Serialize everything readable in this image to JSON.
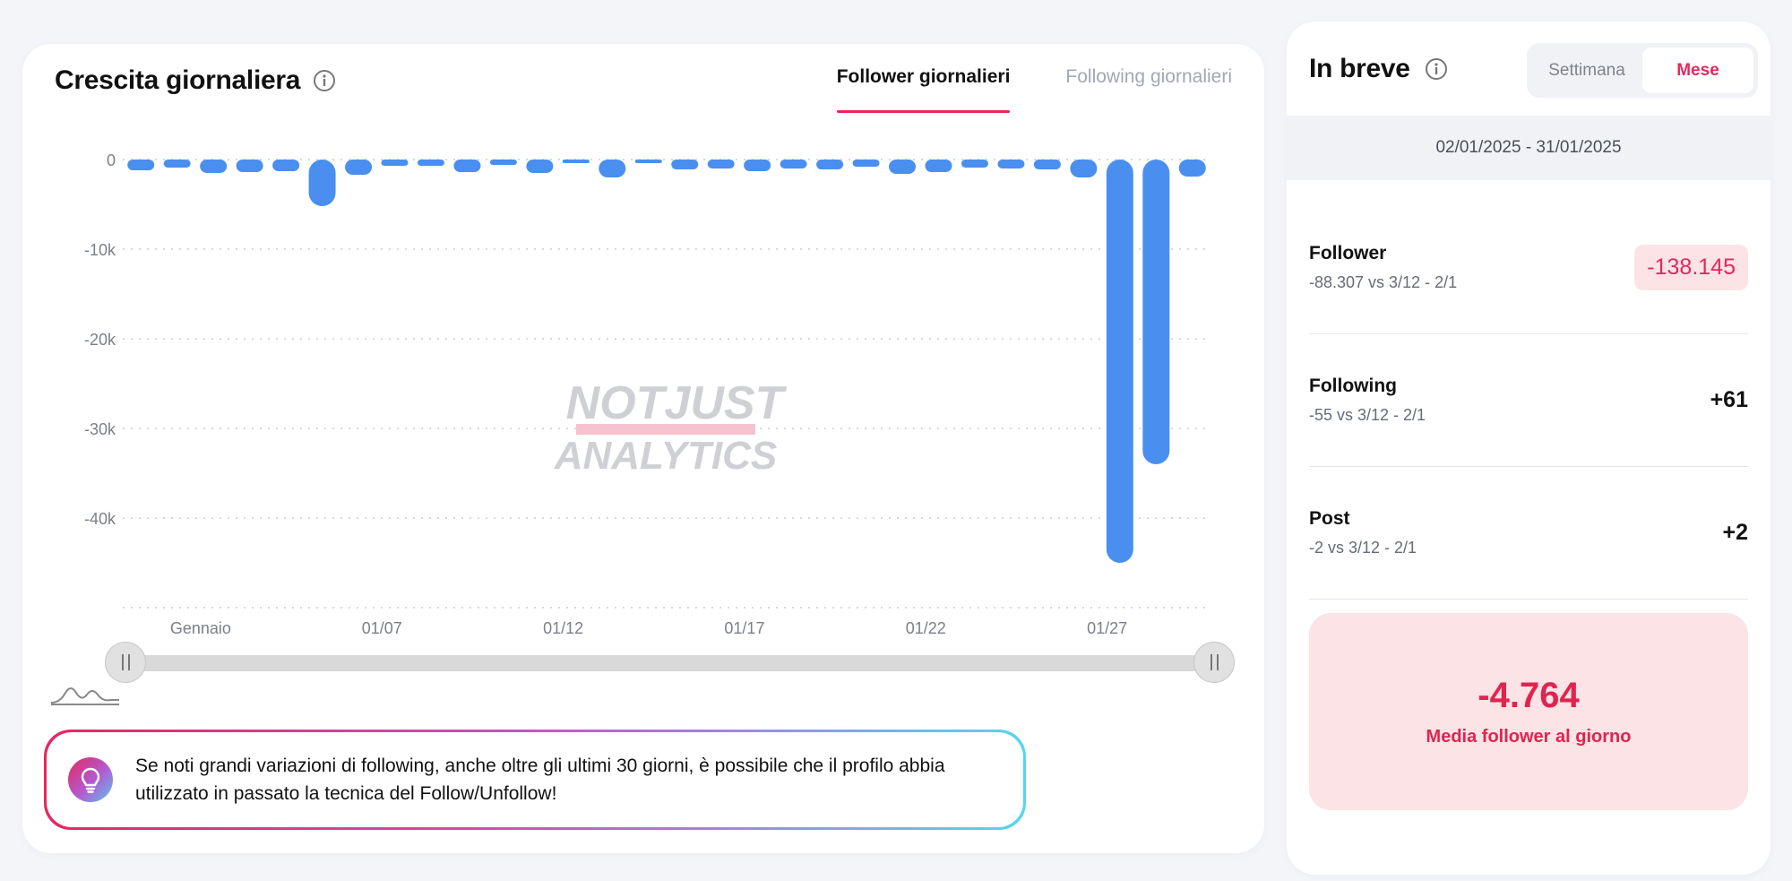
{
  "growth": {
    "title": "Crescita giornaliera",
    "tabs": [
      {
        "label": "Follower giornalieri",
        "active": true
      },
      {
        "label": "Following giornalieri",
        "active": false
      }
    ],
    "watermark": [
      "NOTJUST",
      "ANALYTICS"
    ],
    "tip": "Se noti grandi variazioni di following, anche oltre gli ultimi 30 giorni, è possibile che il profilo abbia utilizzato in passato la tecnica del Follow/Unfollow!"
  },
  "chart_data": {
    "type": "bar",
    "x": [
      "01/01",
      "01/02",
      "01/03",
      "01/04",
      "01/05",
      "01/06",
      "01/07",
      "01/08",
      "01/09",
      "01/10",
      "01/11",
      "01/12",
      "01/13",
      "01/14",
      "01/15",
      "01/16",
      "01/17",
      "01/18",
      "01/19",
      "01/20",
      "01/21",
      "01/22",
      "01/23",
      "01/24",
      "01/25",
      "01/26",
      "01/27",
      "01/28",
      "01/29",
      "01/30"
    ],
    "values": [
      -1200,
      -900,
      -1500,
      -1400,
      -1300,
      -5200,
      -1700,
      -700,
      -700,
      -1400,
      -600,
      -1500,
      -100,
      -2000,
      -300,
      -1100,
      -1000,
      -1300,
      -1000,
      -1100,
      -800,
      -1600,
      -1400,
      -900,
      -1000,
      -1100,
      -2000,
      -45000,
      -34000,
      -1900
    ],
    "xtick_labels": [
      "Gennaio",
      "01/07",
      "01/12",
      "01/17",
      "01/22",
      "01/27"
    ],
    "ytick_labels": [
      "0",
      "-10k",
      "-20k",
      "-30k",
      "-40k"
    ],
    "ylim": [
      -50000,
      0
    ],
    "grid": true,
    "color": "#4a8ff0"
  },
  "brief": {
    "title": "In breve",
    "toggle": [
      {
        "label": "Settimana",
        "active": false
      },
      {
        "label": "Mese",
        "active": true
      }
    ],
    "date_range": "02/01/2025 - 31/01/2025",
    "stats": [
      {
        "label": "Follower",
        "sub": "-88.307 vs 3/12 - 2/1",
        "value": "-138.145"
      },
      {
        "label": "Following",
        "sub": "-55 vs 3/12 - 2/1",
        "value": "+61"
      },
      {
        "label": "Post",
        "sub": "-2 vs 3/12 - 2/1",
        "value": "+2"
      }
    ],
    "average": {
      "value": "-4.764",
      "label": "Media follower al giorno"
    }
  },
  "colors": {
    "accent": "#e5285d",
    "bar": "#4a8ff0"
  }
}
